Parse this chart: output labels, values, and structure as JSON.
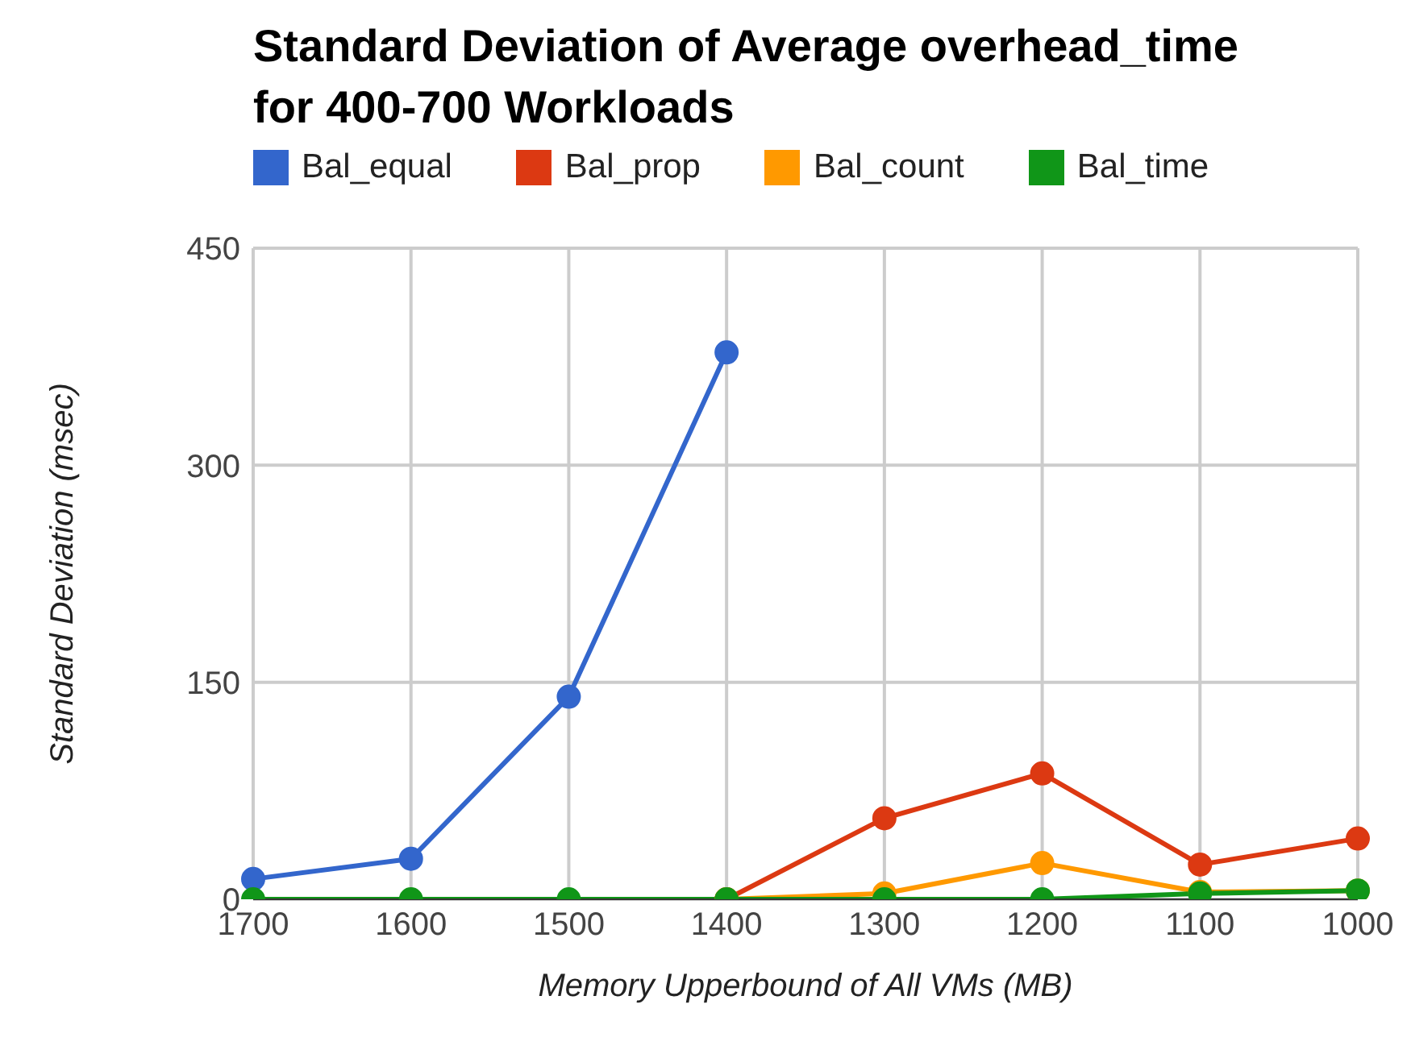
{
  "chart_data": {
    "type": "line",
    "title": "Standard Deviation of Average overhead_time\nfor 400-700 Workloads",
    "xlabel": "Memory Upperbound of All VMs (MB)",
    "ylabel": "Standard Deviation (msec)",
    "categories": [
      "1700",
      "1600",
      "1500",
      "1400",
      "1300",
      "1200",
      "1100",
      "1000"
    ],
    "series": [
      {
        "name": "Bal_equal",
        "color": "#3366cc",
        "values": [
          14,
          28,
          140,
          378,
          null,
          null,
          null,
          null
        ]
      },
      {
        "name": "Bal_prop",
        "color": "#dc3912",
        "values": [
          null,
          null,
          null,
          0,
          56,
          87,
          24,
          42
        ]
      },
      {
        "name": "Bal_count",
        "color": "#ff9900",
        "values": [
          null,
          null,
          null,
          0,
          4,
          25,
          5,
          6
        ]
      },
      {
        "name": "Bal_time",
        "color": "#109618",
        "values": [
          0,
          0,
          0,
          0,
          0,
          0,
          4,
          6
        ]
      }
    ],
    "ylim": [
      0,
      450
    ],
    "yticks": [
      0,
      150,
      300,
      450
    ],
    "grid": true,
    "legend": "top",
    "marker": "circle",
    "line_style": "solid"
  }
}
